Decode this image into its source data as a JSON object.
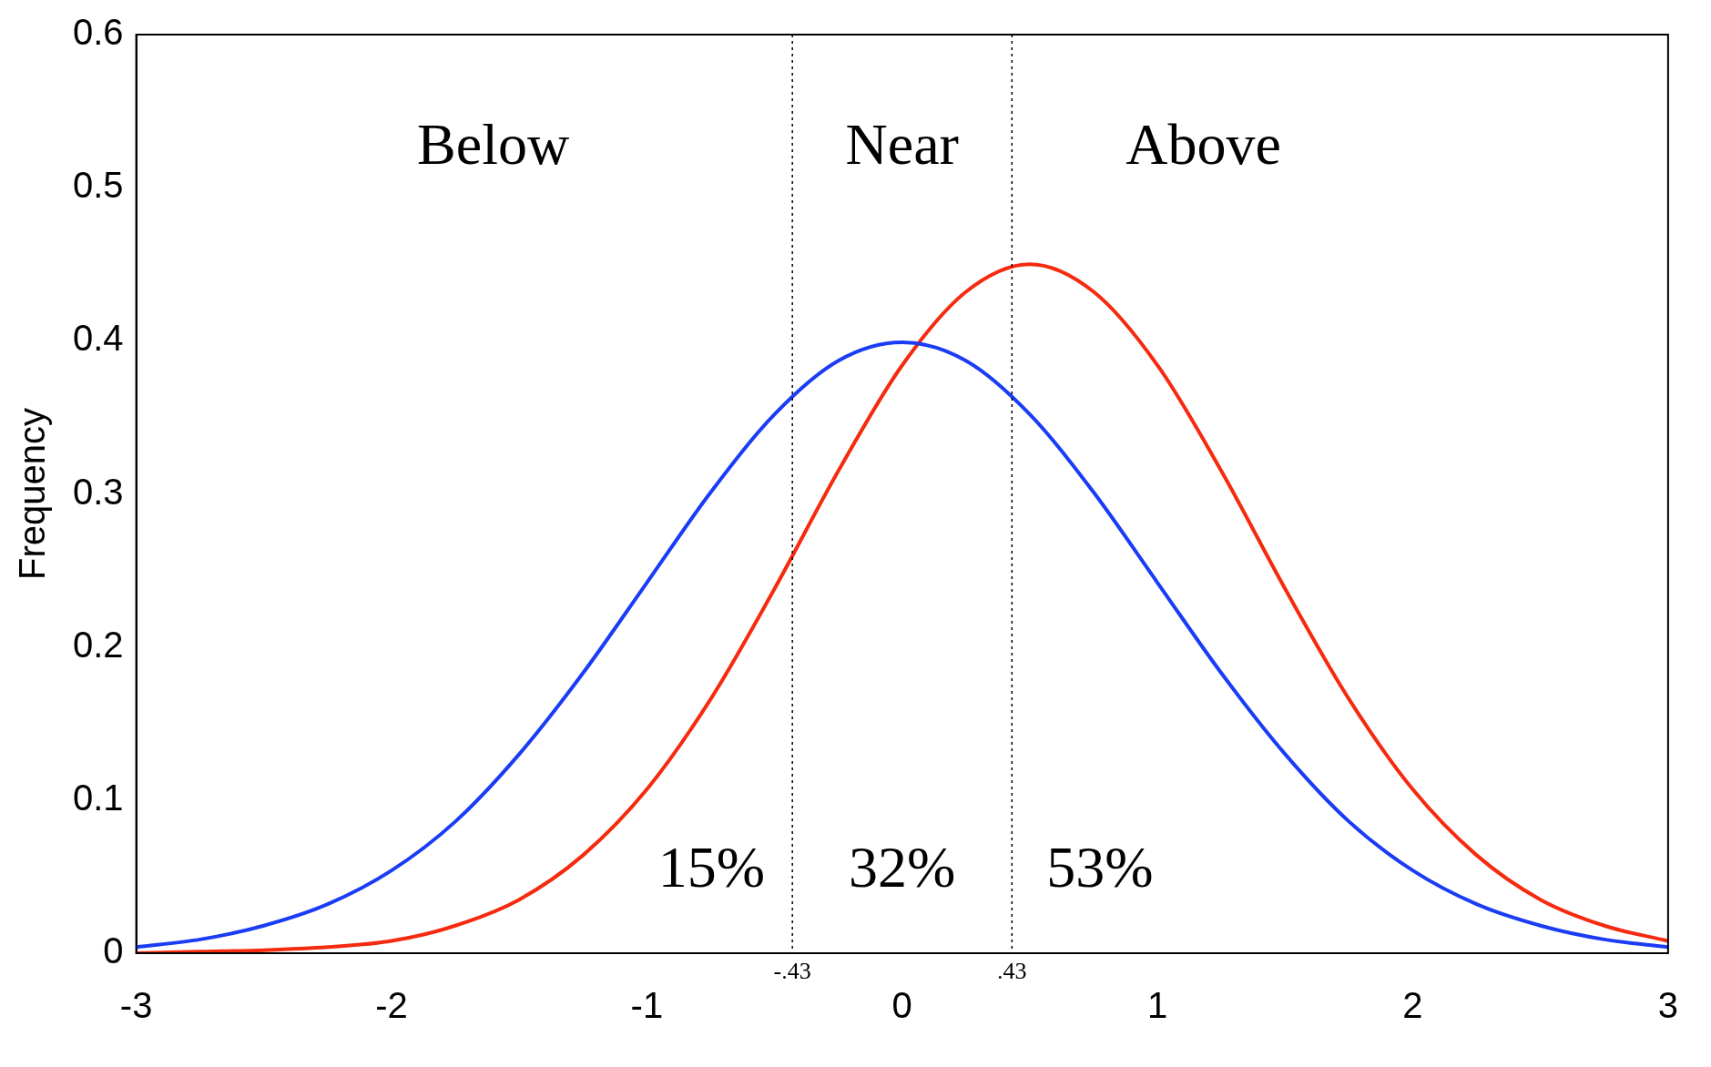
{
  "chart_data": {
    "type": "line",
    "ylabel": "Frequency",
    "x": [
      -3,
      -2.75,
      -2.5,
      -2.25,
      -2,
      -1.75,
      -1.5,
      -1.25,
      -1,
      -0.75,
      -0.5,
      -0.25,
      0,
      0.25,
      0.5,
      0.75,
      1,
      1.25,
      1.5,
      1.75,
      2,
      2.25,
      2.5,
      2.75,
      3
    ],
    "series": [
      {
        "color": "#1a3cf5",
        "values": [
          0.004,
          0.009,
          0.018,
          0.032,
          0.054,
          0.086,
          0.13,
          0.183,
          0.242,
          0.301,
          0.352,
          0.387,
          0.399,
          0.387,
          0.352,
          0.301,
          0.242,
          0.183,
          0.13,
          0.086,
          0.054,
          0.032,
          0.018,
          0.009,
          0.004
        ]
      },
      {
        "color": "#f52a0e",
        "values": [
          0,
          0.001,
          0.002,
          0.004,
          0.008,
          0.018,
          0.035,
          0.064,
          0.107,
          0.166,
          0.238,
          0.315,
          0.384,
          0.432,
          0.45,
          0.432,
          0.384,
          0.315,
          0.238,
          0.166,
          0.107,
          0.064,
          0.035,
          0.018,
          0.008
        ]
      }
    ],
    "xlim": [
      -3,
      3
    ],
    "xticks": [
      -3,
      -2,
      -1,
      0,
      1,
      2,
      3
    ],
    "ylim": [
      0,
      0.6
    ],
    "yticks": [
      0,
      0.1,
      0.2,
      0.3,
      0.4,
      0.5,
      0.6
    ],
    "grid": false,
    "legend": false,
    "marker": "none",
    "line_style": "solid",
    "ref_lines": [
      {
        "axis": "x",
        "value": -0.43,
        "label": "-.43",
        "color": "#000000",
        "line_style": "dotted"
      },
      {
        "axis": "x",
        "value": 0.43,
        "label": ".43",
        "color": "#000000",
        "line_style": "dotted"
      }
    ],
    "annotations": [
      "Below",
      "Near",
      "Above",
      "15%",
      "32%",
      "53%"
    ]
  }
}
